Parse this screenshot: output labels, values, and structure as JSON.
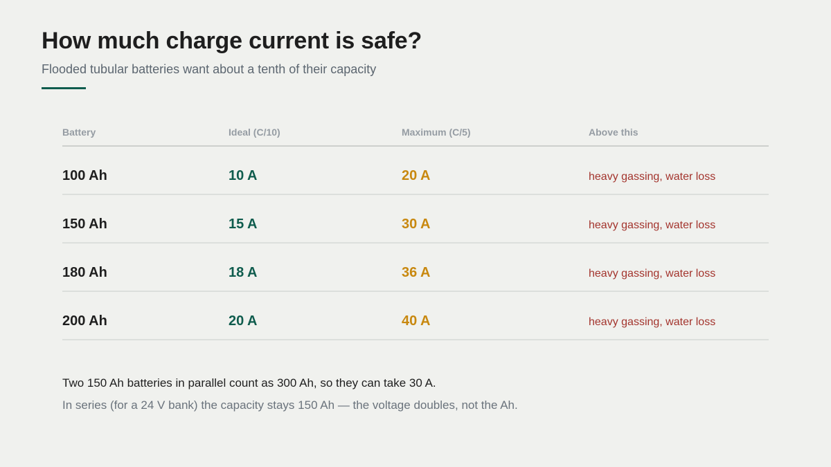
{
  "title": "How much charge current is safe?",
  "subtitle": "Flooded tubular batteries want about a tenth of their capacity",
  "colors": {
    "accent": "#0f5c4d",
    "ideal": "#0f5c4d",
    "maximum": "#c8880f",
    "warning": "#a3342d",
    "background": "#f0f1ee"
  },
  "table": {
    "headers": [
      "Battery",
      "Ideal (C/10)",
      "Maximum (C/5)",
      "Above this"
    ],
    "rows": [
      {
        "battery": "100 Ah",
        "ideal": "10 A",
        "max": "20 A",
        "above": "heavy gassing, water loss"
      },
      {
        "battery": "150 Ah",
        "ideal": "15 A",
        "max": "30 A",
        "above": "heavy gassing, water loss"
      },
      {
        "battery": "180 Ah",
        "ideal": "18 A",
        "max": "36 A",
        "above": "heavy gassing, water loss"
      },
      {
        "battery": "200 Ah",
        "ideal": "20 A",
        "max": "40 A",
        "above": "heavy gassing, water loss"
      }
    ]
  },
  "notes": {
    "parallel": "Two 150 Ah batteries in parallel count as 300 Ah, so they can take 30 A.",
    "series": "In series (for a 24 V bank) the capacity stays 150 Ah — the voltage doubles, not the Ah."
  }
}
